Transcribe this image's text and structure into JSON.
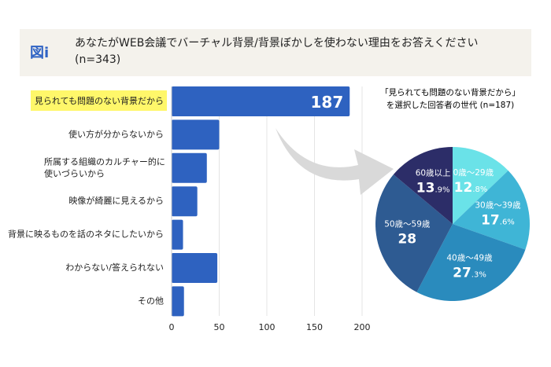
{
  "header": {
    "figure_label": "図i",
    "title": "あなたがWEB会議でバーチャル背景/背景ぼかしを使わない理由をお答えください",
    "subtitle": "(n=343)"
  },
  "chart_data": [
    {
      "type": "bar",
      "orientation": "horizontal",
      "categories": [
        [
          "見られても問題のない背景だから"
        ],
        [
          "使い方が分からないから"
        ],
        [
          "所属する組織のカルチャー的に",
          "使いづらいから"
        ],
        [
          "映像が綺麗に見えるから"
        ],
        [
          "背景に映るものを話のネタにしたいから"
        ],
        [
          "わからない/答えられない"
        ],
        [
          "その他"
        ]
      ],
      "values": [
        187,
        50,
        37,
        27,
        12,
        48,
        13
      ],
      "data_labels": [
        "187",
        "",
        "",
        "",
        "",
        "",
        ""
      ],
      "highlight_category": 0,
      "highlight_color": "#fff76a",
      "xlim": [
        0,
        200
      ],
      "xticks": [
        "0",
        "50",
        "100",
        "150",
        "200"
      ],
      "grid": true,
      "bar_color": "#2e62c0"
    },
    {
      "type": "pie",
      "title": [
        "「見られても問題のない背景だから」",
        "を選択した回答者の世代 (n=187)"
      ],
      "slices": [
        {
          "label": "20歳〜29歳",
          "value": 12.8,
          "big": "12",
          "small": ".8%",
          "color": "#6ae2e8"
        },
        {
          "label": "30歳〜39歳",
          "value": 17.6,
          "big": "17",
          "small": ".6%",
          "color": "#3fb5d6"
        },
        {
          "label": "40歳〜49歳",
          "value": 27.3,
          "big": "27",
          "small": ".3%",
          "color": "#2a8bbd"
        },
        {
          "label": "50歳〜59歳",
          "value": 28.4,
          "big": "28",
          "small": "",
          "color": "#2e5b92"
        },
        {
          "label": "60歳以上",
          "value": 13.9,
          "big": "13",
          "small": ".9%",
          "color": "#2c2d68"
        }
      ]
    }
  ]
}
